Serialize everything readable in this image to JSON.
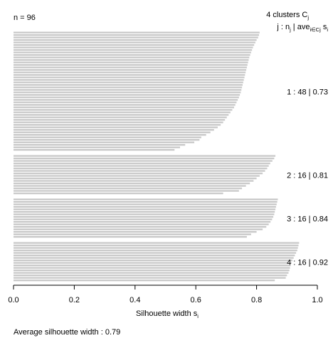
{
  "chart_data": {
    "type": "bar",
    "orientation": "horizontal",
    "n_label": "n = 96",
    "header": {
      "line1_main": "4  clusters  C",
      "line1_sub": "j",
      "line2_a": "j :  n",
      "line2_a_sub": "j",
      "line2_b": " | ave",
      "line2_b_sub": "i∈Cj",
      "line2_c": " s",
      "line2_c_sub": "i"
    },
    "xlabel_main": "Silhouette width s",
    "xlabel_sub": "i",
    "xlim": [
      0,
      1
    ],
    "ticks": [
      "0.0",
      "0.2",
      "0.4",
      "0.6",
      "0.8",
      "1.0"
    ],
    "tick_values": [
      0,
      0.2,
      0.4,
      0.6,
      0.8,
      1.0
    ],
    "average_label": "Average silhouette width :",
    "average_value": "0.79",
    "bar_color": "#c8c8c8",
    "clusters": [
      {
        "label": "1 :   48  |  0.73",
        "values": [
          0.81,
          0.808,
          0.805,
          0.8,
          0.796,
          0.792,
          0.788,
          0.785,
          0.782,
          0.779,
          0.776,
          0.774,
          0.772,
          0.77,
          0.768,
          0.766,
          0.764,
          0.762,
          0.76,
          0.758,
          0.756,
          0.754,
          0.752,
          0.75,
          0.748,
          0.745,
          0.742,
          0.738,
          0.734,
          0.73,
          0.726,
          0.72,
          0.714,
          0.708,
          0.702,
          0.696,
          0.69,
          0.682,
          0.672,
          0.66,
          0.648,
          0.634,
          0.618,
          0.612,
          0.595,
          0.565,
          0.548,
          0.53
        ]
      },
      {
        "label": "2 :   16  |  0.81",
        "values": [
          0.862,
          0.858,
          0.852,
          0.845,
          0.84,
          0.835,
          0.828,
          0.82,
          0.81,
          0.8,
          0.79,
          0.778,
          0.765,
          0.752,
          0.742,
          0.69
        ]
      },
      {
        "label": "3 :   16  |  0.84",
        "values": [
          0.87,
          0.868,
          0.866,
          0.864,
          0.862,
          0.86,
          0.858,
          0.855,
          0.851,
          0.846,
          0.84,
          0.832,
          0.82,
          0.8,
          0.782,
          0.768
        ]
      },
      {
        "label": "4 :   16  |  0.92",
        "values": [
          0.94,
          0.938,
          0.936,
          0.934,
          0.93,
          0.926,
          0.922,
          0.918,
          0.915,
          0.912,
          0.91,
          0.908,
          0.905,
          0.9,
          0.896,
          0.86
        ]
      }
    ]
  }
}
